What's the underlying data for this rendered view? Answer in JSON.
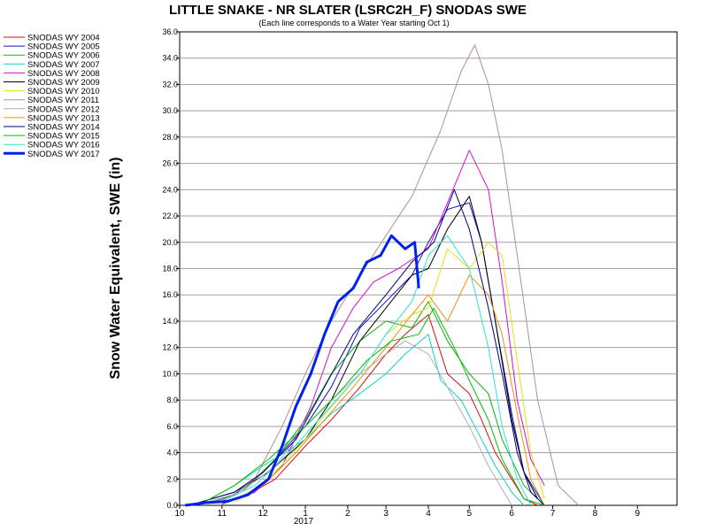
{
  "chart_data": {
    "type": "line",
    "title": "LITTLE SNAKE - NR SLATER (LSRC2H_F) SNODAS SWE",
    "subtitle": "(Each line corresponds to a Water Year starting Oct 1)",
    "xlabel": "",
    "ylabel": "Snow Water Equivalent, SWE (in)",
    "ylim": [
      0,
      36
    ],
    "y_ticks": [
      "0.0",
      "2.0",
      "4.0",
      "6.0",
      "8.0",
      "10.0",
      "12.0",
      "14.0",
      "16.0",
      "18.0",
      "20.0",
      "22.0",
      "24.0",
      "26.0",
      "28.0",
      "30.0",
      "32.0",
      "34.0",
      "36.0"
    ],
    "x_axis_type": "date",
    "xlim": [
      "2016-10-01",
      "2017-09-30"
    ],
    "x_ticks": [
      {
        "label": "10",
        "date": "2016-10-01"
      },
      {
        "label": "11",
        "date": "2016-11-01"
      },
      {
        "label": "12",
        "date": "2016-12-01"
      },
      {
        "label": "1",
        "date": "2017-01-01"
      },
      {
        "label": "2",
        "date": "2017-02-01"
      },
      {
        "label": "3",
        "date": "2017-03-01"
      },
      {
        "label": "4",
        "date": "2017-04-01"
      },
      {
        "label": "5",
        "date": "2017-05-01"
      },
      {
        "label": "6",
        "date": "2017-06-01"
      },
      {
        "label": "7",
        "date": "2017-07-01"
      },
      {
        "label": "8",
        "date": "2017-08-01"
      },
      {
        "label": "9",
        "date": "2017-09-01"
      }
    ],
    "year_label": "2017",
    "grid": "horizontal",
    "legend_position": "left",
    "series": [
      {
        "name": "SNODAS WY 2004",
        "color": "#d01010",
        "x": [
          "2016-11-01",
          "2016-11-20",
          "2016-12-10",
          "2017-01-01",
          "2017-01-20",
          "2017-02-10",
          "2017-03-01",
          "2017-03-15",
          "2017-04-01",
          "2017-04-15",
          "2017-05-01",
          "2017-05-10",
          "2017-05-20",
          "2017-06-01",
          "2017-06-10",
          "2017-06-20"
        ],
        "y": [
          0.1,
          0.8,
          2.0,
          4.5,
          6.5,
          9.0,
          11.5,
          13.0,
          14.5,
          10.0,
          8.5,
          6.5,
          4.0,
          2.0,
          0.5,
          0.0
        ]
      },
      {
        "name": "SNODAS WY 2005",
        "color": "#1010c8",
        "x": [
          "2016-10-20",
          "2016-11-10",
          "2016-12-01",
          "2017-01-01",
          "2017-01-20",
          "2017-02-10",
          "2017-03-01",
          "2017-03-20",
          "2017-04-01",
          "2017-04-15",
          "2017-05-01",
          "2017-05-10",
          "2017-05-20",
          "2017-06-01",
          "2017-06-10",
          "2017-06-25"
        ],
        "y": [
          0.2,
          0.8,
          2.5,
          6.0,
          9.0,
          13.5,
          15.5,
          17.5,
          20.0,
          22.5,
          23.0,
          20.0,
          14.0,
          7.0,
          2.5,
          0.0
        ]
      },
      {
        "name": "SNODAS WY 2006",
        "color": "#10b010",
        "x": [
          "2016-10-25",
          "2016-11-15",
          "2016-12-10",
          "2017-01-01",
          "2017-01-20",
          "2017-02-10",
          "2017-03-01",
          "2017-03-20",
          "2017-04-01",
          "2017-04-15",
          "2017-05-01",
          "2017-05-15",
          "2017-05-25",
          "2017-06-10",
          "2017-06-25"
        ],
        "y": [
          0.2,
          1.0,
          3.5,
          6.5,
          10.0,
          12.5,
          14.0,
          13.5,
          15.5,
          12.5,
          10.0,
          8.5,
          5.0,
          1.5,
          0.0
        ]
      },
      {
        "name": "SNODAS WY 2007",
        "color": "#10d0d0",
        "x": [
          "2016-10-20",
          "2016-11-10",
          "2016-12-01",
          "2017-01-01",
          "2017-01-20",
          "2017-02-10",
          "2017-03-01",
          "2017-03-15",
          "2017-04-01",
          "2017-04-10",
          "2017-04-25",
          "2017-05-10",
          "2017-05-20",
          "2017-06-01",
          "2017-06-10"
        ],
        "y": [
          0.3,
          1.5,
          3.0,
          5.0,
          7.0,
          8.5,
          10.0,
          11.5,
          13.0,
          9.5,
          8.0,
          5.0,
          3.0,
          1.0,
          0.0
        ]
      },
      {
        "name": "SNODAS WY 2008",
        "color": "#d010d0",
        "x": [
          "2016-11-01",
          "2016-11-25",
          "2016-12-15",
          "2017-01-05",
          "2017-01-20",
          "2017-02-05",
          "2017-02-20",
          "2017-03-10",
          "2017-04-01",
          "2017-04-15",
          "2017-05-01",
          "2017-05-15",
          "2017-05-25",
          "2017-06-05",
          "2017-06-15",
          "2017-06-25"
        ],
        "y": [
          0.2,
          1.0,
          3.0,
          7.5,
          12.0,
          15.0,
          17.0,
          18.0,
          19.5,
          23.0,
          27.0,
          24.0,
          17.0,
          8.0,
          3.5,
          1.5
        ]
      },
      {
        "name": "SNODAS WY 2009",
        "color": "#000000",
        "x": [
          "2016-10-15",
          "2016-11-10",
          "2016-12-05",
          "2017-01-01",
          "2017-01-20",
          "2017-02-10",
          "2017-03-01",
          "2017-03-20",
          "2017-04-01",
          "2017-04-15",
          "2017-05-01",
          "2017-05-10",
          "2017-05-20",
          "2017-06-01",
          "2017-06-10",
          "2017-06-20"
        ],
        "y": [
          0.2,
          1.0,
          2.5,
          5.0,
          8.0,
          12.5,
          15.0,
          17.5,
          18.0,
          21.0,
          23.5,
          20.0,
          14.0,
          6.5,
          2.5,
          0.5
        ]
      },
      {
        "name": "SNODAS WY 2010",
        "color": "#e8e010",
        "x": [
          "2016-11-10",
          "2016-12-05",
          "2017-01-01",
          "2017-01-20",
          "2017-02-10",
          "2017-03-01",
          "2017-03-20",
          "2017-04-01",
          "2017-04-15",
          "2017-05-01",
          "2017-05-15",
          "2017-05-25",
          "2017-06-05",
          "2017-06-15",
          "2017-06-25"
        ],
        "y": [
          0.2,
          2.0,
          5.0,
          7.5,
          10.0,
          13.0,
          14.5,
          15.0,
          19.5,
          18.0,
          20.0,
          19.0,
          11.0,
          4.0,
          0.5
        ]
      },
      {
        "name": "SNODAS WY 2011",
        "color": "#b09090",
        "x": [
          "2016-10-10",
          "2016-11-05",
          "2016-11-25",
          "2016-12-15",
          "2017-01-01",
          "2017-01-20",
          "2017-02-10",
          "2017-03-01",
          "2017-03-20",
          "2017-04-10",
          "2017-04-25",
          "2017-05-05",
          "2017-05-15",
          "2017-05-25",
          "2017-06-05",
          "2017-06-20",
          "2017-07-05",
          "2017-07-20"
        ],
        "y": [
          0.1,
          0.5,
          2.0,
          6.0,
          10.0,
          14.0,
          17.5,
          20.5,
          23.5,
          28.5,
          33.0,
          35.0,
          32.0,
          27.0,
          19.0,
          8.0,
          1.5,
          0.0
        ]
      },
      {
        "name": "SNODAS WY 2012",
        "color": "#b0b0b0",
        "x": [
          "2016-10-20",
          "2016-11-15",
          "2016-12-10",
          "2017-01-01",
          "2017-01-20",
          "2017-02-10",
          "2017-03-01",
          "2017-03-15",
          "2017-04-01",
          "2017-04-15",
          "2017-05-01",
          "2017-05-15",
          "2017-06-01"
        ],
        "y": [
          0.2,
          1.0,
          3.0,
          6.0,
          8.0,
          10.0,
          11.5,
          12.5,
          11.5,
          9.0,
          6.0,
          3.0,
          0.0
        ]
      },
      {
        "name": "SNODAS WY 2013",
        "color": "#f09010",
        "x": [
          "2016-11-05",
          "2016-12-01",
          "2016-12-25",
          "2017-01-15",
          "2017-02-05",
          "2017-03-01",
          "2017-03-20",
          "2017-04-01",
          "2017-04-15",
          "2017-05-01",
          "2017-05-15",
          "2017-05-25",
          "2017-06-05",
          "2017-06-15",
          "2017-06-25"
        ],
        "y": [
          0.2,
          1.5,
          4.0,
          6.5,
          9.0,
          12.0,
          14.5,
          16.0,
          14.0,
          17.5,
          16.0,
          13.0,
          7.0,
          2.0,
          0.0
        ]
      },
      {
        "name": "SNODAS WY 2014",
        "color": "#000080",
        "x": [
          "2016-10-15",
          "2016-11-10",
          "2016-12-01",
          "2016-12-25",
          "2017-01-15",
          "2017-02-05",
          "2017-03-01",
          "2017-03-20",
          "2017-04-05",
          "2017-04-20",
          "2017-05-01",
          "2017-05-15",
          "2017-05-25",
          "2017-06-05",
          "2017-06-15",
          "2017-06-25"
        ],
        "y": [
          0.2,
          1.0,
          2.5,
          5.0,
          9.0,
          13.0,
          16.0,
          18.5,
          20.0,
          24.0,
          21.0,
          15.0,
          10.0,
          4.0,
          1.0,
          0.0
        ]
      },
      {
        "name": "SNODAS WY 2015",
        "color": "#00c000",
        "x": [
          "2016-10-20",
          "2016-11-10",
          "2016-12-05",
          "2017-01-01",
          "2017-01-25",
          "2017-02-15",
          "2017-03-05",
          "2017-03-25",
          "2017-04-05",
          "2017-04-20",
          "2017-05-01",
          "2017-05-15",
          "2017-05-25",
          "2017-06-10",
          "2017-06-25"
        ],
        "y": [
          0.3,
          1.5,
          3.5,
          6.0,
          8.5,
          11.0,
          12.5,
          13.0,
          15.0,
          12.0,
          9.5,
          6.5,
          3.5,
          0.5,
          0.0
        ]
      },
      {
        "name": "SNODAS WY 2016",
        "color": "#30e0e0",
        "x": [
          "2016-11-01",
          "2016-11-25",
          "2016-12-20",
          "2017-01-15",
          "2017-02-10",
          "2017-03-01",
          "2017-03-20",
          "2017-04-01",
          "2017-04-15",
          "2017-05-01",
          "2017-05-15",
          "2017-05-25",
          "2017-06-05",
          "2017-06-15"
        ],
        "y": [
          0.3,
          1.5,
          4.0,
          7.0,
          10.0,
          13.0,
          15.5,
          19.0,
          20.5,
          18.0,
          12.0,
          6.0,
          2.0,
          0.0
        ]
      },
      {
        "name": "SNODAS WY 2017",
        "color": "#0020f0",
        "thick": true,
        "x": [
          "2016-10-05",
          "2016-10-20",
          "2016-11-05",
          "2016-11-20",
          "2016-12-05",
          "2016-12-15",
          "2016-12-25",
          "2017-01-05",
          "2017-01-15",
          "2017-01-25",
          "2017-02-05",
          "2017-02-15",
          "2017-02-25",
          "2017-03-05",
          "2017-03-15",
          "2017-03-22",
          "2017-03-25"
        ],
        "y": [
          0.0,
          0.2,
          0.3,
          0.8,
          2.0,
          4.5,
          7.5,
          10.0,
          13.0,
          15.5,
          16.5,
          18.5,
          19.0,
          20.5,
          19.5,
          20.0,
          16.5
        ]
      }
    ]
  }
}
